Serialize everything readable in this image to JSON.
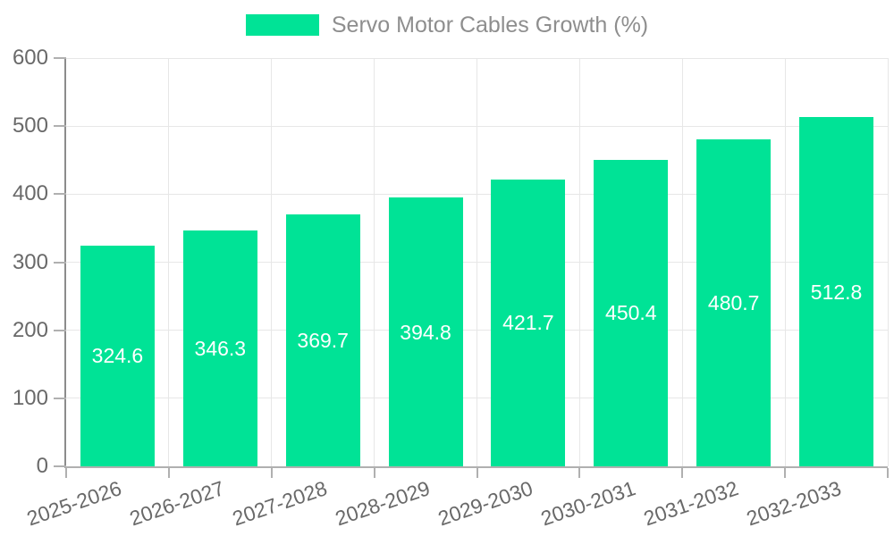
{
  "chart_data": {
    "type": "bar",
    "title": "Servo Motor Cables Growth (%)",
    "categories": [
      "2025-2026",
      "2026-2027",
      "2027-2028",
      "2028-2029",
      "2029-2030",
      "2030-2031",
      "2031-2032",
      "2032-2033"
    ],
    "series": [
      {
        "name": "Servo Motor Cables Growth (%)",
        "color": "#00E396",
        "values": [
          324.6,
          346.3,
          369.7,
          394.8,
          421.7,
          450.4,
          480.7,
          512.8
        ]
      }
    ],
    "xlabel": "",
    "ylabel": "",
    "ylim": [
      0,
      600
    ],
    "yticks": [
      0,
      100,
      200,
      300,
      400,
      500,
      600
    ],
    "grid": true,
    "legend_position": "top-center",
    "value_labels": "inside-center",
    "x_label_rotation_deg": -19
  },
  "legend": {
    "label": "Servo Motor Cables Growth (%)"
  },
  "colors": {
    "bar": "#00E396",
    "value_label": "#ffffff",
    "axis_label": "#696969",
    "legend_text": "#8e8e8e",
    "gridline": "#e7e7e7",
    "y_axis_line": "#8c8c8c",
    "x_axis_line": "#b0b0b0",
    "tick": "#b0b0b0",
    "background": "#ffffff"
  }
}
